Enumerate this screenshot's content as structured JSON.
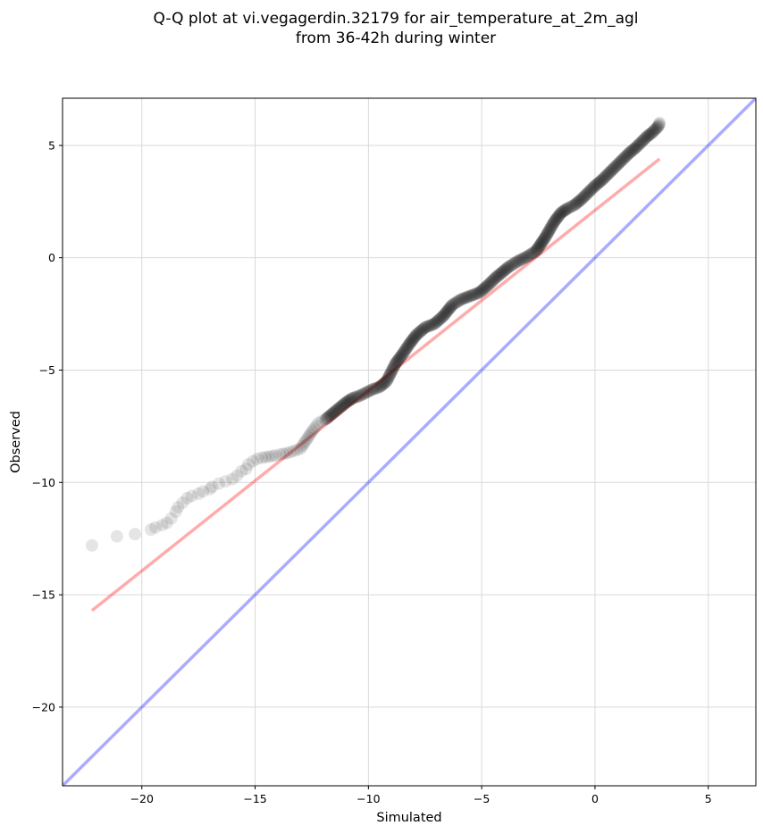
{
  "chart_data": {
    "type": "scatter",
    "title": "Q-Q plot at vi.vegagerdin.32179 for air_temperature_at_2m_agl",
    "subtitle": "from 36-42h during winter",
    "xlabel": "Simulated",
    "ylabel": "Observed",
    "xlim": [
      -23.5,
      7.1
    ],
    "ylim": [
      -23.5,
      7.1
    ],
    "xticks": [
      -20,
      -15,
      -10,
      -5,
      0,
      5
    ],
    "yticks": [
      -20,
      -15,
      -10,
      -5,
      0,
      5
    ],
    "xtick_labels": [
      "−20",
      "−15",
      "−10",
      "−5",
      "0",
      "5"
    ],
    "ytick_labels": [
      "−20",
      "−15",
      "−10",
      "−5",
      "0",
      "5"
    ],
    "grid": true,
    "colors": {
      "points": "#000000",
      "fit_line": "#ff0000",
      "identity_line": "#0000ff",
      "grid": "#d9d9d9"
    },
    "series": [
      {
        "kind": "quantiles",
        "x": [
          -22.2,
          -21.1,
          -20.3,
          -19.6,
          -19.4,
          -19.1,
          -18.9,
          -18.7,
          -18.5,
          -18.4,
          -18.2,
          -18.0,
          -17.8,
          -17.5,
          -17.3,
          -17.0,
          -16.9,
          -16.6,
          -16.3,
          -16.0,
          -15.8,
          -15.6,
          -15.4,
          -15.3,
          -15.1,
          -14.9,
          -14.7,
          -14.4,
          -14.1,
          -13.9,
          -13.6,
          -13.3,
          -13.0,
          -12.8,
          -12.6,
          -12.4,
          -12.2,
          -11.9,
          -11.6,
          -11.3,
          -11.0,
          -10.7,
          -10.4,
          -10.1,
          -9.8,
          -9.5,
          -9.2,
          -9.0,
          -8.8,
          -8.5,
          -8.2,
          -7.9,
          -7.5,
          -7.1,
          -6.7,
          -6.3,
          -5.9,
          -5.5,
          -5.1,
          -4.7,
          -4.4,
          -4.1,
          -3.8,
          -3.4,
          -3.0,
          -2.6,
          -2.2,
          -1.8,
          -1.5,
          -1.2,
          -0.9,
          -0.6,
          -0.3,
          0.0,
          0.3,
          0.6,
          0.9,
          1.2,
          1.5,
          1.8,
          2.1,
          2.3,
          2.5,
          2.6,
          2.7,
          2.8,
          2.85
        ],
        "y": [
          -12.8,
          -12.4,
          -12.3,
          -12.1,
          -12.0,
          -11.9,
          -11.8,
          -11.6,
          -11.3,
          -11.1,
          -10.9,
          -10.7,
          -10.6,
          -10.5,
          -10.4,
          -10.3,
          -10.2,
          -10.05,
          -9.95,
          -9.85,
          -9.7,
          -9.5,
          -9.4,
          -9.2,
          -9.05,
          -8.95,
          -8.9,
          -8.85,
          -8.8,
          -8.75,
          -8.7,
          -8.6,
          -8.5,
          -8.2,
          -7.9,
          -7.6,
          -7.35,
          -7.2,
          -6.95,
          -6.7,
          -6.45,
          -6.25,
          -6.15,
          -6.0,
          -5.85,
          -5.75,
          -5.5,
          -5.1,
          -4.7,
          -4.3,
          -3.85,
          -3.45,
          -3.1,
          -2.95,
          -2.6,
          -2.1,
          -1.85,
          -1.7,
          -1.55,
          -1.2,
          -0.9,
          -0.65,
          -0.4,
          -0.15,
          0.05,
          0.3,
          0.9,
          1.6,
          2.0,
          2.2,
          2.35,
          2.6,
          2.9,
          3.2,
          3.45,
          3.75,
          4.05,
          4.35,
          4.65,
          4.9,
          5.2,
          5.4,
          5.55,
          5.65,
          5.75,
          5.85,
          6.0
        ]
      },
      {
        "kind": "fit_line",
        "x": [
          -22.2,
          2.85
        ],
        "y": [
          -15.7,
          4.4
        ]
      },
      {
        "kind": "identity_line",
        "x": [
          -23.5,
          7.1
        ],
        "y": [
          -23.5,
          7.1
        ]
      }
    ]
  }
}
